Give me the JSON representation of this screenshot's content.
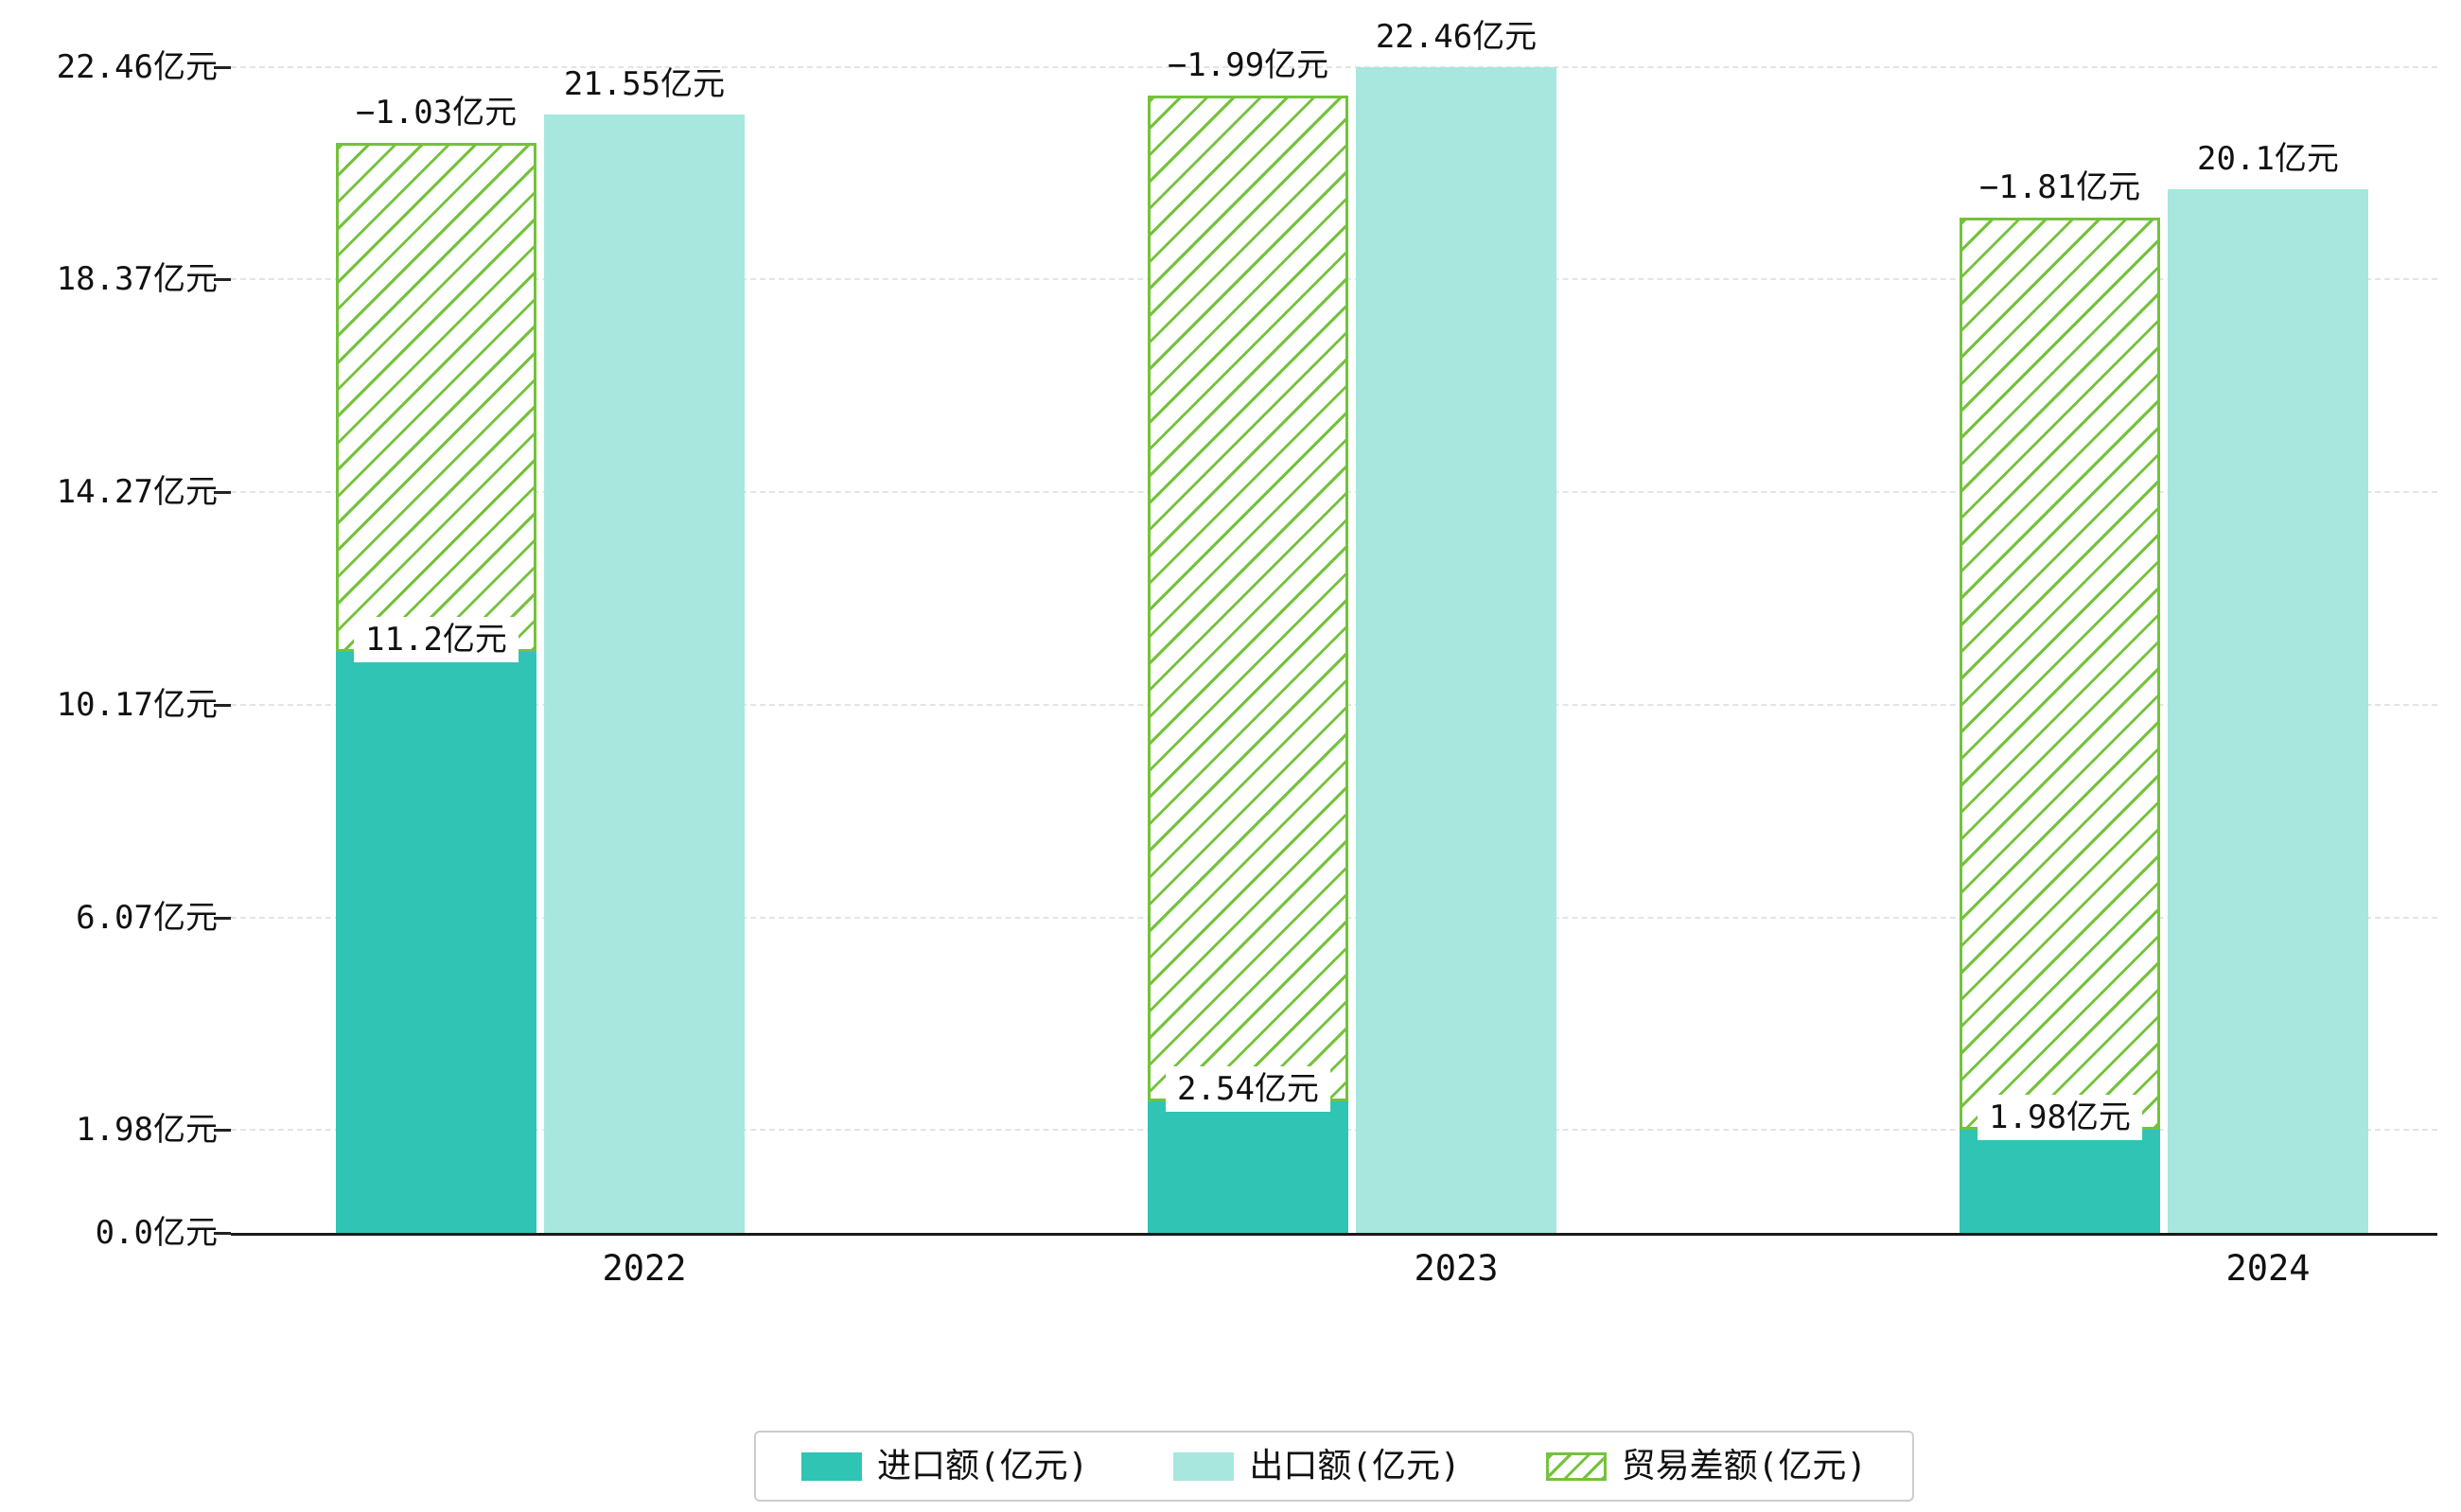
{
  "chart_data": {
    "type": "bar",
    "title": "",
    "categories": [
      "2022",
      "2023",
      "2024"
    ],
    "series": [
      {
        "name": "进口额(亿元)",
        "values": [
          11.2,
          2.54,
          1.98
        ],
        "labels": [
          "11.2亿元",
          "2.54亿元",
          "1.98亿元"
        ],
        "color": "#2fc4b4",
        "style": "solid"
      },
      {
        "name": "出口额(亿元)",
        "values": [
          21.55,
          22.46,
          20.1
        ],
        "labels": [
          "21.55亿元",
          "22.46亿元",
          "20.1亿元"
        ],
        "color": "#a8e7de",
        "style": "solid"
      },
      {
        "name": "贸易差额(亿元)",
        "values": [
          -1.03,
          -1.99,
          -1.81
        ],
        "labels": [
          "−1.03亿元",
          "−1.99亿元",
          "−1.81亿元"
        ],
        "color": "#74c23c",
        "style": "hatched",
        "note": "hatched bar drawn stacked from top of import bar up to top of export bar"
      }
    ],
    "yticks": [
      {
        "value": 0,
        "label": "0.0亿元"
      },
      {
        "value": 1.98,
        "label": "1.98亿元"
      },
      {
        "value": 6.07,
        "label": "6.07亿元"
      },
      {
        "value": 10.17,
        "label": "10.17亿元"
      },
      {
        "value": 14.27,
        "label": "14.27亿元"
      },
      {
        "value": 18.37,
        "label": "18.37亿元"
      },
      {
        "value": 22.46,
        "label": "22.46亿元"
      }
    ],
    "ylim": [
      0,
      22.46
    ],
    "xlabel": "",
    "ylabel": "",
    "grid": "horizontal-dashed",
    "legend_position": "bottom-center"
  },
  "colors": {
    "import_bar": "#2fc4b4",
    "export_bar": "#a8e7de",
    "hatch_green": "#74c23c",
    "grid": "#e4e4e4",
    "axis": "#1a1a1a",
    "legend_border": "#cccccc",
    "background": "#ffffff",
    "text": "#111111"
  },
  "legend": {
    "items": [
      {
        "label": "进口额(亿元)",
        "swatch": "solid-teal"
      },
      {
        "label": "出口额(亿元)",
        "swatch": "solid-lightcyan"
      },
      {
        "label": "贸易差额(亿元)",
        "swatch": "hatched-green"
      }
    ]
  }
}
